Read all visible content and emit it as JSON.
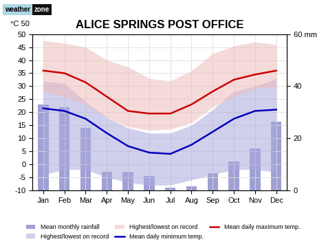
{
  "chart_data": {
    "type": "combo",
    "title": "ALICE SPRINGS POST OFFICE",
    "categories": [
      "Jan",
      "Feb",
      "Mar",
      "Apr",
      "May",
      "Jun",
      "Jul",
      "Aug",
      "Sep",
      "Oct",
      "Nov",
      "Dec"
    ],
    "series": [
      {
        "name": "Mean monthly rainfall",
        "type": "bar",
        "axis": "y2",
        "color": "#8888cc",
        "values": [
          33.0,
          32.0,
          24.0,
          7.0,
          7.0,
          5.5,
          1.0,
          1.5,
          6.5,
          11.0,
          16.0,
          26.5
        ]
      },
      {
        "name": "Highest/lowest on record",
        "type": "band",
        "color": "#aaaadd",
        "low": [
          -4.0,
          -2.0,
          -2.0,
          -5.0,
          -7.0,
          -8.0,
          -8.0,
          -6.0,
          -4.0,
          -2.0,
          -2.0,
          -3.0
        ],
        "high": [
          32.0,
          31.0,
          24.0,
          18.0,
          14.0,
          12.0,
          12.0,
          15.0,
          21.0,
          28.0,
          30.0,
          33.0
        ]
      },
      {
        "name": "Highest/lowest on record",
        "type": "band",
        "color": "#eebcbc",
        "low": [
          28.0,
          26.0,
          23.0,
          18.0,
          14.5,
          13.0,
          13.5,
          16.0,
          22.0,
          26.0,
          29.0,
          30.0
        ],
        "high": [
          47.5,
          46.5,
          45.0,
          40.0,
          37.5,
          33.0,
          32.0,
          36.0,
          42.5,
          45.5,
          47.0,
          46.0
        ]
      },
      {
        "name": "Mean daily minimum temp.",
        "type": "line",
        "color": "#0000bb",
        "values": [
          21.5,
          20.5,
          17.5,
          12.0,
          7.0,
          4.5,
          4.0,
          7.5,
          12.5,
          17.5,
          20.5,
          21.0
        ]
      },
      {
        "name": "Mean daily maximum temp.",
        "type": "line",
        "color": "#cc0000",
        "values": [
          36.0,
          35.0,
          31.5,
          26.0,
          20.5,
          19.5,
          19.5,
          23.0,
          28.0,
          32.5,
          34.5,
          36.0
        ]
      }
    ],
    "ylim": [
      -10,
      50
    ],
    "yticks": [
      -10,
      -5,
      0,
      5,
      10,
      15,
      20,
      25,
      30,
      35,
      40,
      45,
      50
    ],
    "y2lim": [
      0,
      60
    ],
    "y2ticks": [
      0,
      20,
      40,
      {
        "value": 60,
        "label": "60 mm"
      }
    ],
    "annotations": [
      "°C 50",
      "weather",
      "zone"
    ],
    "grid": true,
    "legend": "lower center"
  }
}
